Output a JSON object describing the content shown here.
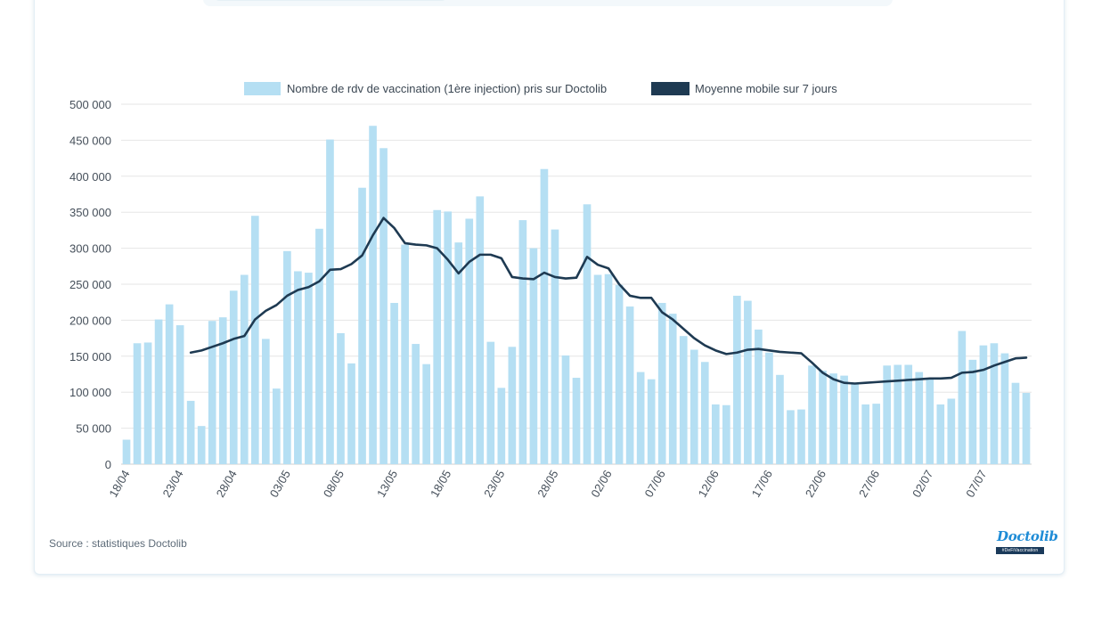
{
  "source": "Source : statistiques Doctolib",
  "logo": {
    "name": "Doctolib",
    "tag": "#DeFiVaccination"
  },
  "colors": {
    "bar": "#b5dff3",
    "line": "#1e3a52",
    "grid": "#e6e6e6"
  },
  "chart_data": {
    "type": "bar",
    "title": "",
    "xlabel": "",
    "ylabel": "",
    "ylim": [
      0,
      500000
    ],
    "y_ticks": [
      {
        "value": 0,
        "label": "0"
      },
      {
        "value": 50000,
        "label": "50 000"
      },
      {
        "value": 100000,
        "label": "100 000"
      },
      {
        "value": 150000,
        "label": "150 000"
      },
      {
        "value": 200000,
        "label": "200 000"
      },
      {
        "value": 250000,
        "label": "250 000"
      },
      {
        "value": 300000,
        "label": "300 000"
      },
      {
        "value": 350000,
        "label": "350 000"
      },
      {
        "value": 400000,
        "label": "400 000"
      },
      {
        "value": 450000,
        "label": "450 000"
      },
      {
        "value": 500000,
        "label": "500 000"
      }
    ],
    "x_tick_labels": [
      {
        "index": 0,
        "label": "18/04"
      },
      {
        "index": 5,
        "label": "23/04"
      },
      {
        "index": 10,
        "label": "28/04"
      },
      {
        "index": 15,
        "label": "03/05"
      },
      {
        "index": 20,
        "label": "08/05"
      },
      {
        "index": 25,
        "label": "13/05"
      },
      {
        "index": 30,
        "label": "18/05"
      },
      {
        "index": 35,
        "label": "23/05"
      },
      {
        "index": 40,
        "label": "28/05"
      },
      {
        "index": 45,
        "label": "02/06"
      },
      {
        "index": 50,
        "label": "07/06"
      },
      {
        "index": 55,
        "label": "12/06"
      },
      {
        "index": 60,
        "label": "17/06"
      },
      {
        "index": 65,
        "label": "22/06"
      },
      {
        "index": 70,
        "label": "27/06"
      },
      {
        "index": 75,
        "label": "02/07"
      },
      {
        "index": 80,
        "label": "07/07"
      }
    ],
    "legend": [
      {
        "name": "Nombre de rdv de vaccination (1ère injection) pris sur Doctolib",
        "kind": "bar"
      },
      {
        "name": "Moyenne mobile sur 7 jours",
        "kind": "line"
      }
    ],
    "legend_position": "top-center",
    "series": [
      {
        "name": "Nombre de rdv de vaccination (1ère injection) pris sur Doctolib",
        "type": "bar",
        "values": [
          34000,
          168000,
          169000,
          201000,
          222000,
          193000,
          88000,
          53000,
          199000,
          204000,
          241000,
          263000,
          345000,
          174000,
          105000,
          296000,
          268000,
          266000,
          327000,
          451000,
          182000,
          140000,
          384000,
          470000,
          439000,
          224000,
          305000,
          167000,
          139000,
          353000,
          351000,
          308000,
          341000,
          372000,
          170000,
          106000,
          163000,
          339000,
          300000,
          410000,
          326000,
          151000,
          120000,
          361000,
          263000,
          264000,
          249000,
          219000,
          128000,
          118000,
          224000,
          209000,
          178000,
          159000,
          142000,
          83000,
          82000,
          234000,
          227000,
          187000,
          155000,
          124000,
          75000,
          76000,
          137000,
          130000,
          126000,
          123000,
          113000,
          83000,
          84000,
          137000,
          138000,
          138000,
          128000,
          118000,
          83000,
          91000,
          185000,
          145000,
          165000,
          168000,
          154000,
          113000,
          99000
        ]
      },
      {
        "name": "Moyenne mobile sur 7 jours",
        "type": "line",
        "start_index": 6,
        "values": [
          155000,
          158000,
          163000,
          168000,
          174000,
          178000,
          201000,
          213000,
          221000,
          234000,
          242000,
          246000,
          254000,
          270000,
          271000,
          278000,
          290000,
          318000,
          342000,
          328000,
          307000,
          305000,
          304000,
          300000,
          284000,
          265000,
          281000,
          291000,
          291000,
          286000,
          260000,
          258000,
          257000,
          266000,
          260000,
          258000,
          259000,
          288000,
          277000,
          272000,
          250000,
          234000,
          231000,
          231000,
          211000,
          201000,
          188000,
          175000,
          165000,
          158000,
          153000,
          155000,
          159000,
          160000,
          158000,
          156000,
          155000,
          154000,
          141000,
          127000,
          118000,
          113000,
          112000,
          113000,
          114000,
          115000,
          116000,
          117000,
          118000,
          119000,
          119000,
          120000,
          127000,
          128000,
          131000,
          137000,
          142000,
          147000,
          148000
        ]
      }
    ]
  }
}
